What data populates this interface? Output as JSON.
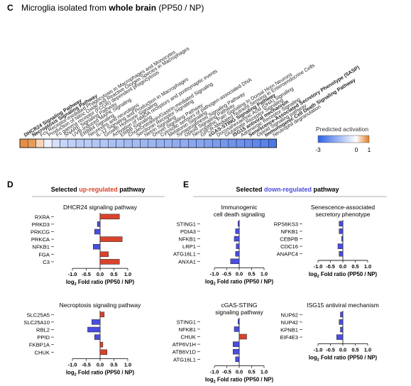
{
  "figure": {
    "panel_c": {
      "letter": "C",
      "title_pre": "Microglia isolated from ",
      "title_bold": "whole brain",
      "title_post": " (PP50 / NP)",
      "pathways": [
        {
          "label": "DHCR24 Signaling Pathway",
          "bold": true,
          "value": 0.85
        },
        {
          "label": "Necroptosis Signaling Pathway",
          "bold": true,
          "value": 0.75
        },
        {
          "label": "Fcγ Receptor-mediated Phagocytosis in Macrophages and Monocytes",
          "bold": false,
          "value": 0.3
        },
        {
          "label": "Production of Nitric Oxide and Reactive Oxygen Species in Macrophages",
          "bold": false,
          "value": -0.25
        },
        {
          "label": "Fc gamma receptor (FCGR) dependent phagocytosis",
          "bold": false,
          "value": -0.6
        },
        {
          "label": "SNARE Signaling Pathway",
          "bold": false,
          "value": -0.8
        },
        {
          "label": "UVB-Induced MAPK Signaling",
          "bold": false,
          "value": -0.9
        },
        {
          "label": "ERBB4 Signaling",
          "bold": false,
          "value": -1.0
        },
        {
          "label": "Neurexins and neuroligins",
          "bold": false,
          "value": -1.0
        },
        {
          "label": "IL-12 Signaling and Production in Macrophages",
          "bold": false,
          "value": -1.1
        },
        {
          "label": "Growth Hormone Signaling",
          "bold": false,
          "value": -1.1
        },
        {
          "label": "Activation of NMDA receptors and postsynaptic events",
          "bold": false,
          "value": -1.2
        },
        {
          "label": "ERBB Signaling",
          "bold": false,
          "value": -1.2
        },
        {
          "label": "Cholecystokinin/Gastrin-mediated Signaling",
          "bold": false,
          "value": -1.3
        },
        {
          "label": "Serotonin Receptor Signaling",
          "bold": false,
          "value": -1.3
        },
        {
          "label": "Netrin Signaling",
          "bold": false,
          "value": -1.4
        },
        {
          "label": "Orexin Signaling Pathway",
          "bold": false,
          "value": -1.4
        },
        {
          "label": "Cytosolic sensors of pathogen-associated DNA",
          "bold": false,
          "value": -1.5
        },
        {
          "label": "Melatonin Signaling",
          "bold": false,
          "value": -1.5
        },
        {
          "label": "Synaptogenesis Signaling Pathway",
          "bold": false,
          "value": -1.6
        },
        {
          "label": "Opioid Signaling Pathway",
          "bold": false,
          "value": -1.6
        },
        {
          "label": "Neuropathic Pain Signaling In Dorsal Horn Neurons",
          "bold": false,
          "value": -1.7
        },
        {
          "label": "GPCR-Mediated Nutrient Sensing in Enteroendocrine Cells",
          "bold": false,
          "value": -1.7
        },
        {
          "label": "cGAS-STING Signaling Pathway",
          "bold": true,
          "value": -1.8
        },
        {
          "label": "Docosahexaenoic Acid (DHA) Signaling",
          "bold": false,
          "value": -1.9
        },
        {
          "label": "Glutamate Receptor Signaling",
          "bold": false,
          "value": -2.0
        },
        {
          "label": "ISG15 antiviral mechanism",
          "bold": true,
          "value": -2.1
        },
        {
          "label": "Adrenergic Receptor Signaling",
          "bold": false,
          "value": -2.1
        },
        {
          "label": "Senescence-Associated Secretory Phenotype (SASP)",
          "bold": true,
          "value": -2.2
        },
        {
          "label": "Opioid Signaling pathway",
          "bold": false,
          "value": -2.3
        },
        {
          "label": "Immunogenic Cell Death Signaling Pathway",
          "bold": true,
          "value": -2.4
        },
        {
          "label": "Neutrophil degranulation",
          "bold": false,
          "value": -2.6
        }
      ],
      "legend_title": "Predicted activation",
      "legend_ticks": [
        "-3",
        "0",
        "1"
      ],
      "scale_min": -3,
      "scale_max": 1
    },
    "panel_d": {
      "letter": "D",
      "title_pre": "Selected ",
      "title_colored": "up-regulated",
      "title_post": " pathway",
      "title_color": "#d9432c"
    },
    "panel_e": {
      "letter": "E",
      "title_pre": "Selected ",
      "title_colored": "down-regulated",
      "title_post": " pathway",
      "title_color": "#4a4de0"
    },
    "colors": {
      "up_bar": "#d9432c",
      "down_bar": "#4a4de0",
      "heat_low": "#2e63e6",
      "heat_mid": "#ffffff",
      "heat_high": "#e07a22"
    },
    "axis_label_main": "Fold ratio (PP50 / NP)",
    "axis_label_log": "log",
    "axis_label_sub": "2"
  },
  "chart_data": [
    {
      "type": "heatmap",
      "title": "Microglia isolated from whole brain (PP50 / NP)",
      "categories": [
        "DHCR24 Signaling Pathway",
        "Necroptosis Signaling Pathway",
        "Fcγ Receptor-mediated Phagocytosis in Macrophages and Monocytes",
        "Production of Nitric Oxide and Reactive Oxygen Species in Macrophages",
        "Fc gamma receptor (FCGR) dependent phagocytosis",
        "SNARE Signaling Pathway",
        "UVB-Induced MAPK Signaling",
        "ERBB4 Signaling",
        "Neurexins and neuroligins",
        "IL-12 Signaling and Production in Macrophages",
        "Growth Hormone Signaling",
        "Activation of NMDA receptors and postsynaptic events",
        "ERBB Signaling",
        "Cholecystokinin/Gastrin-mediated Signaling",
        "Serotonin Receptor Signaling",
        "Netrin Signaling",
        "Orexin Signaling Pathway",
        "Cytosolic sensors of pathogen-associated DNA",
        "Melatonin Signaling",
        "Synaptogenesis Signaling Pathway",
        "Opioid Signaling Pathway",
        "Neuropathic Pain Signaling In Dorsal Horn Neurons",
        "GPCR-Mediated Nutrient Sensing in Enteroendocrine Cells",
        "cGAS-STING Signaling Pathway",
        "Docosahexaenoic Acid (DHA) Signaling",
        "Glutamate Receptor Signaling",
        "ISG15 antiviral mechanism",
        "Adrenergic Receptor Signaling",
        "Senescence-Associated Secretory Phenotype (SASP)",
        "Opioid Signaling pathway",
        "Immunogenic Cell Death Signaling Pathway",
        "Neutrophil degranulation"
      ],
      "values": [
        0.85,
        0.75,
        0.3,
        -0.25,
        -0.6,
        -0.8,
        -0.9,
        -1.0,
        -1.0,
        -1.1,
        -1.1,
        -1.2,
        -1.2,
        -1.3,
        -1.3,
        -1.4,
        -1.4,
        -1.5,
        -1.5,
        -1.6,
        -1.6,
        -1.7,
        -1.7,
        -1.8,
        -1.9,
        -2.0,
        -2.1,
        -2.1,
        -2.2,
        -2.3,
        -2.4,
        -2.6
      ],
      "legend_title": "Predicted activation",
      "range": [
        -3,
        1
      ]
    },
    {
      "type": "bar",
      "orientation": "horizontal",
      "panel": "D",
      "title": "DHCR24 signaling pathway",
      "categories": [
        "RXRA",
        "PRKD3",
        "PRKCG",
        "PRKCA",
        "NFKB1",
        "FGA",
        "C3"
      ],
      "values": [
        0.7,
        -0.1,
        -0.2,
        0.8,
        -0.25,
        0.3,
        0.7
      ],
      "xlabel": "log2 Fold ratio (PP50 / NP)",
      "xlim": [
        -1.0,
        1.0
      ],
      "xticks": [
        "-1.0",
        "-0.5",
        "0.0",
        "0.5",
        "1.0"
      ]
    },
    {
      "type": "bar",
      "orientation": "horizontal",
      "panel": "D",
      "title": "Necroptosis signaling pathway",
      "categories": [
        "SLC25A5",
        "SLC25A10",
        "RBL2",
        "PPID",
        "FKBP1A",
        "CHUK"
      ],
      "values": [
        0.15,
        -0.3,
        -0.45,
        -0.2,
        0.1,
        0.25
      ],
      "xlabel": "log2 Fold ratio (PP50 / NP)",
      "xlim": [
        -1.0,
        1.0
      ],
      "xticks": [
        "-1.0",
        "-0.5",
        "0.0",
        "0.5",
        "1.0"
      ]
    },
    {
      "type": "bar",
      "orientation": "horizontal",
      "panel": "E",
      "title": "Immunogenic cell death signaling",
      "categories": [
        "STING1",
        "PDIA3",
        "NFKB1",
        "LRP1",
        "ATG16L1",
        "ANXA1"
      ],
      "values": [
        -0.05,
        -0.15,
        -0.2,
        -0.12,
        -0.15,
        -0.35
      ],
      "xlabel": "log2 Fold ratio (PP50 / NP)",
      "xlim": [
        -1.0,
        1.0
      ],
      "xticks": [
        "-1.0",
        "-0.5",
        "0.0",
        "0.5",
        "1.0"
      ]
    },
    {
      "type": "bar",
      "orientation": "horizontal",
      "panel": "E",
      "title": "Senescence-associated secretory phenotype",
      "categories": [
        "RPS6KS3",
        "NFKB1",
        "CEBPB",
        "CDC16",
        "ANAPC4"
      ],
      "values": [
        -0.15,
        -0.15,
        -0.05,
        -0.2,
        -0.15
      ],
      "xlabel": "log2 Fold ratio (PP50 / NP)",
      "xlim": [
        -1.0,
        1.0
      ],
      "xticks": [
        "-1.0",
        "-0.5",
        "0.0",
        "0.5",
        "1.0"
      ]
    },
    {
      "type": "bar",
      "orientation": "horizontal",
      "panel": "E",
      "title": "cGAS-STING signaling pathway",
      "categories": [
        "STING1",
        "NFKB1",
        "CHUK",
        "ATP6V1H",
        "ATB6V1D",
        "ATG16L1"
      ],
      "values": [
        -0.05,
        -0.2,
        0.3,
        -0.25,
        -0.25,
        -0.15
      ],
      "xlabel": "log2 Fold ratio (PP50 / NP)",
      "xlim": [
        -1.0,
        1.0
      ],
      "xticks": [
        "-1.0",
        "-0.5",
        "0.0",
        "0.5",
        "1.0"
      ]
    },
    {
      "type": "bar",
      "orientation": "horizontal",
      "panel": "E",
      "title": "ISG15 antiviral mechanism",
      "categories": [
        "NUP62",
        "NUP42",
        "KPNB1",
        "EIF4E3"
      ],
      "values": [
        -0.1,
        -0.15,
        -0.1,
        -0.25
      ],
      "xlabel": "log2 Fold ratio (PP50 / NP)",
      "xlim": [
        -1.0,
        1.0
      ],
      "xticks": [
        "-1.0",
        "-0.5",
        "0.0",
        "0.5",
        "1.0"
      ]
    }
  ]
}
